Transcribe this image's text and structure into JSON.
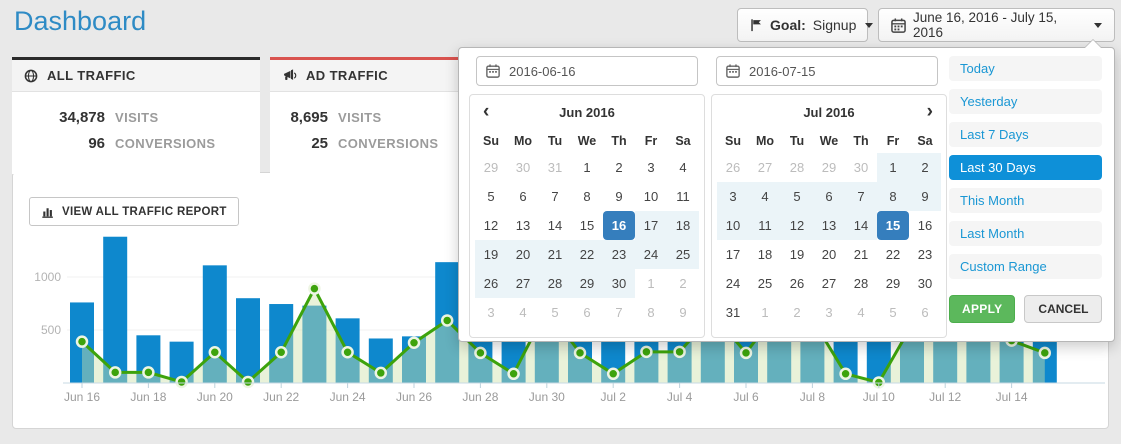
{
  "page": {
    "title": "Dashboard",
    "background": "#e9e9e9"
  },
  "header": {
    "goal_button": {
      "icon": "flag-icon",
      "label": "Goal:",
      "value": "Signup"
    },
    "date_range_button": {
      "icon": "calendar-icon",
      "label": "June 16, 2016 - July 15, 2016"
    }
  },
  "cards": {
    "all_traffic": {
      "icon": "globe-icon",
      "accent": "#2b2b2b",
      "title": "ALL TRAFFIC",
      "visits_value": "34,878",
      "visits_label": "VISITS",
      "conversions_value": "96",
      "conversions_label": "CONVERSIONS"
    },
    "ad_traffic": {
      "icon": "megaphone-icon",
      "accent": "#d9534f",
      "title": "AD TRAFFIC",
      "visits_value": "8,695",
      "visits_label": "VISITS",
      "conversions_value": "25",
      "conversions_label": "CONVERSIONS"
    }
  },
  "report_button": {
    "icon": "bar-chart-icon",
    "label": "VIEW ALL TRAFFIC REPORT"
  },
  "datepicker": {
    "start_input_value": "2016-06-16",
    "end_input_value": "2016-07-15",
    "nav_prev": "‹",
    "nav_next": "›",
    "months": [
      {
        "title": "Jun 2016",
        "weekdays": [
          "Su",
          "Mo",
          "Tu",
          "We",
          "Th",
          "Fr",
          "Sa"
        ],
        "weeks": [
          [
            {
              "d": 29,
              "s": "m"
            },
            {
              "d": 30,
              "s": "m"
            },
            {
              "d": 31,
              "s": "m"
            },
            {
              "d": 1
            },
            {
              "d": 2
            },
            {
              "d": 3
            },
            {
              "d": 4
            }
          ],
          [
            {
              "d": 5
            },
            {
              "d": 6
            },
            {
              "d": 7
            },
            {
              "d": 8
            },
            {
              "d": 9
            },
            {
              "d": 10
            },
            {
              "d": 11
            }
          ],
          [
            {
              "d": 12
            },
            {
              "d": 13
            },
            {
              "d": 14
            },
            {
              "d": 15
            },
            {
              "d": 16,
              "s": "sel"
            },
            {
              "d": 17,
              "s": "r"
            },
            {
              "d": 18,
              "s": "r"
            }
          ],
          [
            {
              "d": 19,
              "s": "r"
            },
            {
              "d": 20,
              "s": "r"
            },
            {
              "d": 21,
              "s": "r"
            },
            {
              "d": 22,
              "s": "r"
            },
            {
              "d": 23,
              "s": "r"
            },
            {
              "d": 24,
              "s": "r"
            },
            {
              "d": 25,
              "s": "r"
            }
          ],
          [
            {
              "d": 26,
              "s": "r"
            },
            {
              "d": 27,
              "s": "r"
            },
            {
              "d": 28,
              "s": "r"
            },
            {
              "d": 29,
              "s": "r"
            },
            {
              "d": 30,
              "s": "r"
            },
            {
              "d": 1,
              "s": "m"
            },
            {
              "d": 2,
              "s": "m"
            }
          ],
          [
            {
              "d": 3,
              "s": "m"
            },
            {
              "d": 4,
              "s": "m"
            },
            {
              "d": 5,
              "s": "m"
            },
            {
              "d": 6,
              "s": "m"
            },
            {
              "d": 7,
              "s": "m"
            },
            {
              "d": 8,
              "s": "m"
            },
            {
              "d": 9,
              "s": "m"
            }
          ]
        ]
      },
      {
        "title": "Jul 2016",
        "weekdays": [
          "Su",
          "Mo",
          "Tu",
          "We",
          "Th",
          "Fr",
          "Sa"
        ],
        "weeks": [
          [
            {
              "d": 26,
              "s": "m"
            },
            {
              "d": 27,
              "s": "m"
            },
            {
              "d": 28,
              "s": "m"
            },
            {
              "d": 29,
              "s": "m"
            },
            {
              "d": 30,
              "s": "m"
            },
            {
              "d": 1,
              "s": "r"
            },
            {
              "d": 2,
              "s": "r"
            }
          ],
          [
            {
              "d": 3,
              "s": "r"
            },
            {
              "d": 4,
              "s": "r"
            },
            {
              "d": 5,
              "s": "r"
            },
            {
              "d": 6,
              "s": "r"
            },
            {
              "d": 7,
              "s": "r"
            },
            {
              "d": 8,
              "s": "r"
            },
            {
              "d": 9,
              "s": "r"
            }
          ],
          [
            {
              "d": 10,
              "s": "r"
            },
            {
              "d": 11,
              "s": "r"
            },
            {
              "d": 12,
              "s": "r"
            },
            {
              "d": 13,
              "s": "r"
            },
            {
              "d": 14,
              "s": "r"
            },
            {
              "d": 15,
              "s": "sel"
            },
            {
              "d": 16
            }
          ],
          [
            {
              "d": 17
            },
            {
              "d": 18
            },
            {
              "d": 19
            },
            {
              "d": 20
            },
            {
              "d": 21
            },
            {
              "d": 22
            },
            {
              "d": 23
            }
          ],
          [
            {
              "d": 24
            },
            {
              "d": 25
            },
            {
              "d": 26
            },
            {
              "d": 27
            },
            {
              "d": 28
            },
            {
              "d": 29
            },
            {
              "d": 30
            }
          ],
          [
            {
              "d": 31
            },
            {
              "d": 1,
              "s": "m"
            },
            {
              "d": 2,
              "s": "m"
            },
            {
              "d": 3,
              "s": "m"
            },
            {
              "d": 4,
              "s": "m"
            },
            {
              "d": 5,
              "s": "m"
            },
            {
              "d": 6,
              "s": "m"
            }
          ]
        ]
      }
    ],
    "ranges": [
      "Today",
      "Yesterday",
      "Last 7 Days",
      "Last 30 Days",
      "This Month",
      "Last Month",
      "Custom Range"
    ],
    "active_range": "Last 30 Days",
    "apply_label": "APPLY",
    "cancel_label": "CANCEL",
    "colors": {
      "selected_day_bg": "#357ebd",
      "in_range_bg": "#ebf4f8",
      "active_range_bg": "#0e90d8",
      "apply_bg": "#5cb85c"
    }
  },
  "chart_data": {
    "type": "bar+line",
    "x": [
      "Jun 16",
      "Jun 17",
      "Jun 18",
      "Jun 19",
      "Jun 20",
      "Jun 21",
      "Jun 22",
      "Jun 23",
      "Jun 24",
      "Jun 25",
      "Jun 26",
      "Jun 27",
      "Jun 28",
      "Jun 29",
      "Jun 30",
      "Jul 1",
      "Jul 2",
      "Jul 3",
      "Jul 4",
      "Jul 5",
      "Jul 6",
      "Jul 7",
      "Jul 8",
      "Jul 9",
      "Jul 10",
      "Jul 11",
      "Jul 12",
      "Jul 13",
      "Jul 14",
      "Jul 15"
    ],
    "series": [
      {
        "name": "Visits",
        "type": "bar",
        "color": "#0e88cd",
        "values": [
          760,
          1380,
          450,
          390,
          1110,
          800,
          745,
          730,
          610,
          420,
          440,
          1140,
          650,
          550,
          900,
          700,
          600,
          550,
          650,
          800,
          700,
          900,
          750,
          600,
          550,
          650,
          700,
          800,
          950,
          700
        ]
      },
      {
        "name": "Conversions",
        "type": "line",
        "color": "#3da30c",
        "area_color": "#cfe3ab",
        "marker_ring": "#edf5e3",
        "values": [
          390,
          100,
          100,
          10,
          290,
          10,
          290,
          890,
          290,
          95,
          380,
          590,
          284,
          87,
          700,
          284,
          87,
          294,
          294,
          650,
          284,
          700,
          600,
          87,
          5,
          550,
          700,
          600,
          400,
          284
        ]
      }
    ],
    "xtick_labels": [
      "Jun 16",
      "Jun 18",
      "Jun 20",
      "Jun 22",
      "Jun 24",
      "Jun 26",
      "Jun 28",
      "Jun 30",
      "Jul 2",
      "Jul 4",
      "Jul 6",
      "Jul 8",
      "Jul 10",
      "Jul 12",
      "Jul 14"
    ],
    "yticks": [
      {
        "v": 500,
        "label": "500"
      },
      {
        "v": 1000,
        "label": "1000"
      }
    ],
    "ylim": [
      0,
      1450
    ],
    "legend": "none",
    "grid": "horizontal",
    "note": "Bars and line points for Jun 28 - Jul 13 are partially occluded by the date-picker popup; those values are estimated."
  }
}
